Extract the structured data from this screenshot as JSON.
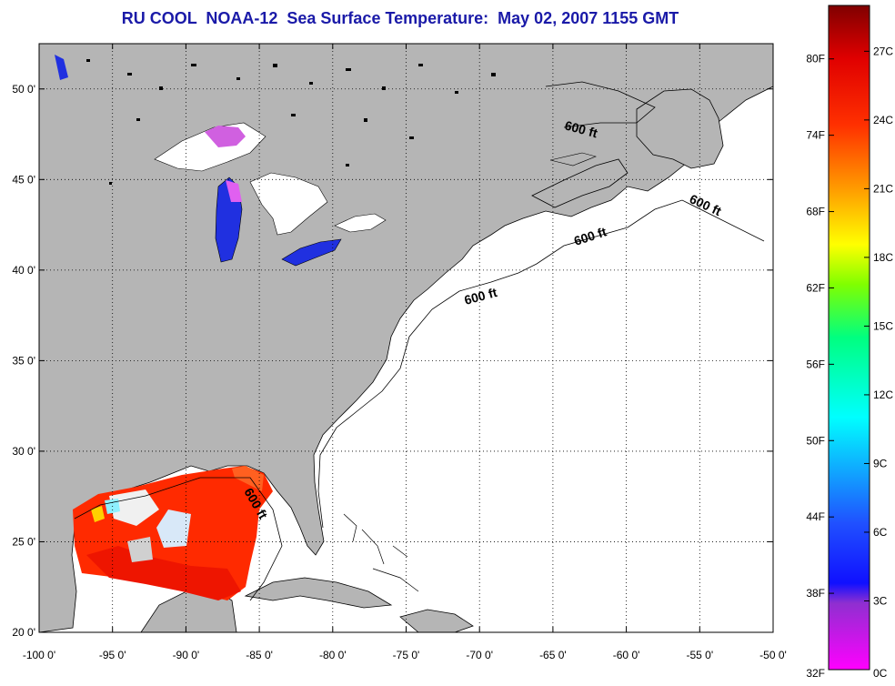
{
  "title": "RU COOL  NOAA-12  Sea Surface Temperature:  May 02, 2007 1155 GMT",
  "map": {
    "lon_range": [
      -100,
      -50
    ],
    "lat_range": [
      20,
      52.5
    ],
    "lon_ticks": [
      "-100 0'",
      "-95 0'",
      "-90 0'",
      "-85 0'",
      "-80 0'",
      "-75 0'",
      "-70 0'",
      "-65 0'",
      "-60 0'",
      "-55 0'",
      "-50 0'"
    ],
    "lat_ticks": [
      "20 0'",
      "25 0'",
      "30 0'",
      "35 0'",
      "40 0'",
      "45 0'",
      "50 0'"
    ],
    "grid": true,
    "contour_labels": [
      "600 ft",
      "600 ft",
      "600 ft",
      "600 ft",
      "600 ft"
    ],
    "colors": {
      "land": "#b5b5b5",
      "ocean": "#ffffff",
      "title": "#1a1aa8"
    }
  },
  "colorbar": {
    "fahrenheit_labels": [
      "32F",
      "38F",
      "44F",
      "50F",
      "56F",
      "62F",
      "68F",
      "74F",
      "80F"
    ],
    "celsius_labels": [
      "0C",
      "3C",
      "6C",
      "9C",
      "12C",
      "15C",
      "18C",
      "21C",
      "24C",
      "27C"
    ],
    "celsius_range": [
      0,
      29
    ]
  }
}
